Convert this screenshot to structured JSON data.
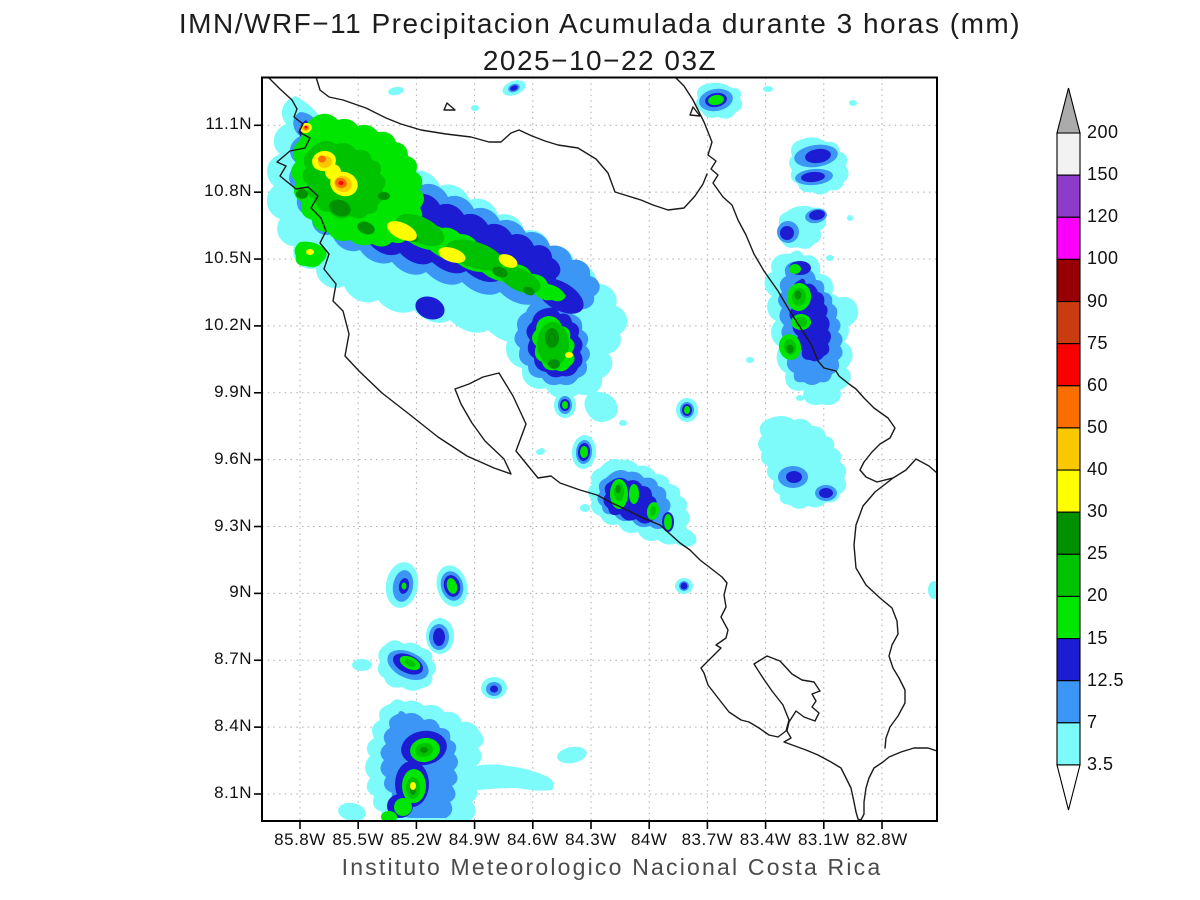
{
  "title": {
    "line1": "IMN/WRF−11 Precipitacion Acumulada durante 3 horas (mm)",
    "line2": "2025−10−22 03Z"
  },
  "footer": "Instituto Meteorologico Nacional Costa Rica",
  "axes": {
    "lat_ticks": [
      "11.1N",
      "10.8N",
      "10.5N",
      "10.2N",
      "9.9N",
      "9.6N",
      "9.3N",
      "9N",
      "8.7N",
      "8.4N",
      "8.1N"
    ],
    "lon_ticks": [
      "85.8W",
      "85.5W",
      "85.2W",
      "84.9W",
      "84.6W",
      "84.3W",
      "84W",
      "83.7W",
      "83.4W",
      "83.1W",
      "82.8W"
    ]
  },
  "colorbar": {
    "labels": [
      "200",
      "150",
      "120",
      "100",
      "90",
      "75",
      "60",
      "50",
      "40",
      "30",
      "25",
      "20",
      "15",
      "12.5",
      "7",
      "3.5"
    ],
    "colors": [
      "#f2f2f2",
      "#8c3cc8",
      "#fa00fa",
      "#960000",
      "#c83c0f",
      "#fa0000",
      "#fa6e00",
      "#fac800",
      "#ffff00",
      "#009000",
      "#00c300",
      "#00e600",
      "#1c1cd2",
      "#3c96f5",
      "#7dfbfb"
    ],
    "over_color": "#ababab",
    "under_color": "#ffffff"
  },
  "chart_data": {
    "type": "filled_contour_map",
    "title": "IMN/WRF−11 Precipitacion Acumulada durante 3 horas (mm)",
    "valid_time": "2025−10−22 03Z",
    "variable": "3-hour accumulated precipitation",
    "units": "mm",
    "region": "Costa Rica",
    "lon_ticks_W": [
      "85.8W",
      "85.5W",
      "85.2W",
      "84.9W",
      "84.6W",
      "84.3W",
      "84W",
      "83.7W",
      "83.4W",
      "83.1W",
      "82.8W"
    ],
    "lat_ticks_N": [
      "11.1N",
      "10.8N",
      "10.5N",
      "10.2N",
      "9.9N",
      "9.6N",
      "9.3N",
      "9N",
      "8.7N",
      "8.4N",
      "8.1N"
    ],
    "levels_mm": [
      3.5,
      7,
      12.5,
      15,
      20,
      25,
      30,
      40,
      50,
      60,
      75,
      90,
      100,
      120,
      150,
      200
    ],
    "palette": [
      {
        "key": "35",
        "level_mm": 3.5,
        "color": "#7dfbfb"
      },
      {
        "key": "7",
        "level_mm": 7,
        "color": "#3c96f5"
      },
      {
        "key": "125",
        "level_mm": 12.5,
        "color": "#1c1cd2"
      },
      {
        "key": "15",
        "level_mm": 15,
        "color": "#00e600"
      },
      {
        "key": "20",
        "level_mm": 20,
        "color": "#00c300"
      },
      {
        "key": "25",
        "level_mm": 25,
        "color": "#009000"
      },
      {
        "key": "30",
        "level_mm": 30,
        "color": "#ffff00"
      },
      {
        "key": "40",
        "level_mm": 40,
        "color": "#fac800"
      },
      {
        "key": "50",
        "level_mm": 50,
        "color": "#fa6e00"
      },
      {
        "key": "60",
        "level_mm": 60,
        "color": "#fa0000"
      },
      {
        "key": "75",
        "level_mm": 75,
        "color": "#c83c0f"
      },
      {
        "key": "90",
        "level_mm": 90,
        "color": "#960000"
      },
      {
        "key": "100",
        "level_mm": 100,
        "color": "#fa00fa"
      },
      {
        "key": "120",
        "level_mm": 120,
        "color": "#8c3cc8"
      },
      {
        "key": "150",
        "level_mm": 150,
        "color": "#f2f2f2"
      }
    ],
    "max_shaded_level_on_map_mm": 60,
    "systems": [
      {
        "name": "Guanacaste NW band",
        "center": "85.5W 10.7N",
        "extent": "85.9W-84.4W / 10.2N-11.15N",
        "peak_mm": "60-75",
        "notes": "SW-NE oriented band; strongest cores near 85.6W 10.85N and a small intense cell at 85.77W 11.09N"
      },
      {
        "name": "Central cell",
        "center": "84.45W 10.15N",
        "peak_mm": "30-40"
      },
      {
        "name": "Caribbean coast band",
        "center": "83.35W 10.3N",
        "peak_mm": "25-30"
      },
      {
        "name": "North Caribbean cell",
        "center": "83.65W 11.2N",
        "peak_mm": "15-20"
      },
      {
        "name": "Central Pacific coastal cells",
        "center": "84.2W 9.45N",
        "peak_mm": "20-25"
      },
      {
        "name": "South Caribbean showers",
        "center": "83.3W 9.55N",
        "peak_mm": "12.5-15"
      },
      {
        "name": "SW offshore cluster",
        "center": "85.2W 8.3N",
        "peak_mm": "30-40"
      }
    ]
  }
}
